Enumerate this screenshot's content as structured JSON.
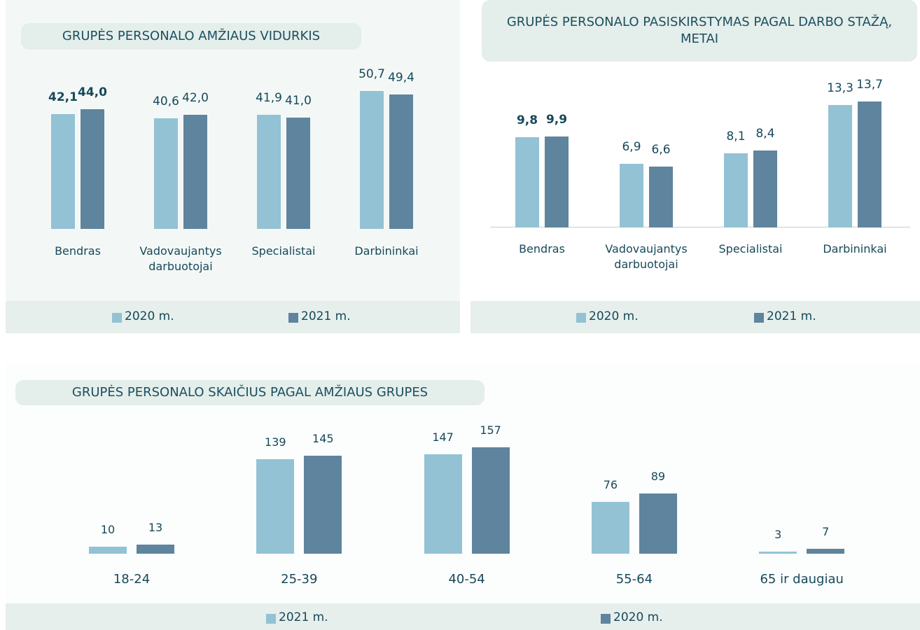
{
  "chart_data": [
    {
      "type": "bar",
      "title": "GRUPĖS PERSONALO AMŽIAUS VIDURKIS",
      "categories": [
        "Bendras",
        "Vadovaujantys darbuotojai",
        "Specialistai",
        "Darbininkai"
      ],
      "series": [
        {
          "name": "2020 m.",
          "color": "#93c2d4",
          "values": [
            42.1,
            40.6,
            41.9,
            50.7
          ],
          "value_labels": [
            "42,1",
            "40,6",
            "41,9",
            "50,7"
          ]
        },
        {
          "name": "2021 m.",
          "color": "#5f849d",
          "values": [
            44.0,
            42.0,
            41.0,
            49.4
          ],
          "value_labels": [
            "44,0",
            "42,0",
            "41,0",
            "49,4"
          ]
        }
      ],
      "legend": "bottom"
    },
    {
      "type": "bar",
      "title": "GRUPĖS PERSONALO PASISKIRSTYMAS PAGAL DARBO STAŽĄ, METAI",
      "categories": [
        "Bendras",
        "Vadovaujantys darbuotojai",
        "Specialistai",
        "Darbininkai"
      ],
      "series": [
        {
          "name": "2020 m.",
          "color": "#93c2d4",
          "values": [
            9.8,
            6.9,
            8.1,
            13.3
          ],
          "value_labels": [
            "9,8",
            "6,9",
            "8,1",
            "13,3"
          ]
        },
        {
          "name": "2021 m.",
          "color": "#5f849d",
          "values": [
            9.9,
            6.6,
            8.4,
            13.7
          ],
          "value_labels": [
            "9,9",
            "6,6",
            "8,4",
            "13,7"
          ]
        }
      ],
      "legend": "bottom"
    },
    {
      "type": "bar",
      "title": "GRUPĖS PERSONALO SKAIČIUS PAGAL AMŽIAUS GRUPES",
      "categories": [
        "18-24",
        "25-39",
        "40-54",
        "55-64",
        "65 ir daugiau"
      ],
      "series": [
        {
          "name": "2021 m.",
          "color": "#93c2d4",
          "values": [
            10,
            139,
            147,
            76,
            3
          ]
        },
        {
          "name": "2020 m.",
          "color": "#5f849d",
          "values": [
            13,
            145,
            157,
            89,
            7
          ]
        }
      ],
      "legend": "bottom"
    }
  ]
}
